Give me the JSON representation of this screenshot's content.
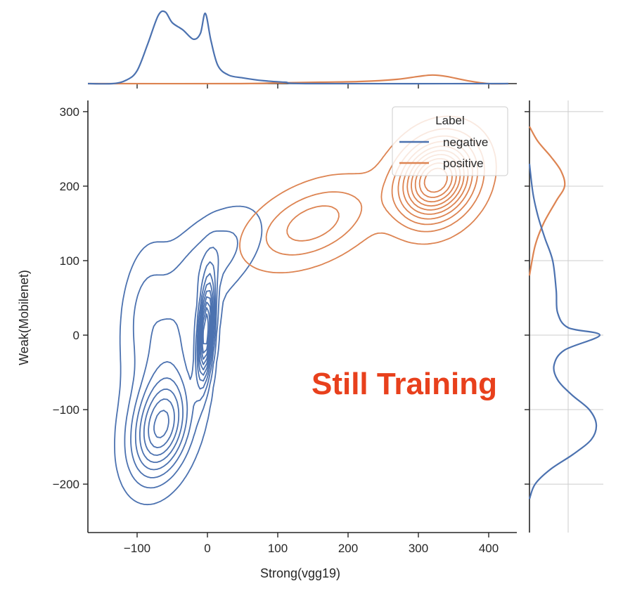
{
  "chart_data": {
    "type": "kde-joint",
    "title": "",
    "xlabel": "Strong(vgg19)",
    "ylabel": "Weak(Mobilenet)",
    "xlim": [
      -170,
      440
    ],
    "ylim": [
      -265,
      315
    ],
    "xticks": [
      -100,
      0,
      100,
      200,
      300,
      400
    ],
    "xtick_labels": [
      "−100",
      "0",
      "100",
      "200",
      "300",
      "400"
    ],
    "yticks": [
      -200,
      -100,
      0,
      100,
      200,
      300
    ],
    "ytick_labels": [
      "−200",
      "−100",
      "0",
      "100",
      "200",
      "300"
    ],
    "legend": {
      "title": "Label",
      "placement": "upper-right",
      "entries": [
        {
          "label": "negative",
          "color": "#4c72b0"
        },
        {
          "label": "positive",
          "color": "#dd8452"
        }
      ]
    },
    "annotation": {
      "text": "Still Training",
      "x": 280,
      "y": -65,
      "color": "#e8401c"
    },
    "series": [
      {
        "name": "negative",
        "color": "#4c72b0",
        "kde_components": [
          {
            "mx": -65,
            "my": -125,
            "sx": 28,
            "sy": 45,
            "rho": 0.3,
            "w": 0.38
          },
          {
            "mx": -55,
            "my": -20,
            "sx": 35,
            "sy": 75,
            "rho": 0.5,
            "w": 0.26
          },
          {
            "mx": -2,
            "my": 5,
            "sx": 8,
            "sy": 45,
            "rho": 0.4,
            "w": 0.16
          },
          {
            "mx": 15,
            "my": 110,
            "sx": 40,
            "sy": 40,
            "rho": 0.5,
            "w": 0.12
          },
          {
            "mx": -90,
            "my": 40,
            "sx": 22,
            "sy": 55,
            "rho": 0.3,
            "w": 0.08
          }
        ],
        "x_marginal": [
          [
            -135,
            0.0
          ],
          [
            -115,
            0.05
          ],
          [
            -100,
            0.18
          ],
          [
            -85,
            0.55
          ],
          [
            -70,
            0.95
          ],
          [
            -60,
            1.0
          ],
          [
            -50,
            0.85
          ],
          [
            -35,
            0.75
          ],
          [
            -20,
            0.62
          ],
          [
            -10,
            0.7
          ],
          [
            -3,
            0.98
          ],
          [
            5,
            0.6
          ],
          [
            15,
            0.25
          ],
          [
            30,
            0.12
          ],
          [
            50,
            0.08
          ],
          [
            80,
            0.04
          ],
          [
            110,
            0.02
          ],
          [
            150,
            0.0
          ]
        ],
        "y_marginal": [
          [
            -220,
            0.0
          ],
          [
            -200,
            0.08
          ],
          [
            -180,
            0.3
          ],
          [
            -160,
            0.62
          ],
          [
            -140,
            0.88
          ],
          [
            -120,
            0.95
          ],
          [
            -100,
            0.85
          ],
          [
            -80,
            0.6
          ],
          [
            -60,
            0.4
          ],
          [
            -40,
            0.35
          ],
          [
            -20,
            0.5
          ],
          [
            0,
            1.0
          ],
          [
            10,
            0.55
          ],
          [
            30,
            0.4
          ],
          [
            60,
            0.38
          ],
          [
            100,
            0.33
          ],
          [
            130,
            0.22
          ],
          [
            160,
            0.12
          ],
          [
            190,
            0.05
          ],
          [
            230,
            0.0
          ]
        ]
      },
      {
        "name": "positive",
        "color": "#dd8452",
        "kde_components": [
          {
            "mx": 325,
            "my": 208,
            "sx": 35,
            "sy": 35,
            "rho": 0.2,
            "w": 0.7
          },
          {
            "mx": 150,
            "my": 150,
            "sx": 55,
            "sy": 35,
            "rho": 0.45,
            "w": 0.3
          }
        ],
        "x_marginal": [
          [
            40,
            0.0
          ],
          [
            100,
            0.01
          ],
          [
            160,
            0.02
          ],
          [
            220,
            0.03
          ],
          [
            270,
            0.06
          ],
          [
            300,
            0.1
          ],
          [
            320,
            0.12
          ],
          [
            340,
            0.1
          ],
          [
            370,
            0.04
          ],
          [
            400,
            0.0
          ]
        ],
        "y_marginal": [
          [
            80,
            0.0
          ],
          [
            120,
            0.08
          ],
          [
            150,
            0.2
          ],
          [
            180,
            0.38
          ],
          [
            200,
            0.5
          ],
          [
            220,
            0.45
          ],
          [
            240,
            0.3
          ],
          [
            260,
            0.12
          ],
          [
            280,
            0.0
          ]
        ]
      }
    ]
  }
}
